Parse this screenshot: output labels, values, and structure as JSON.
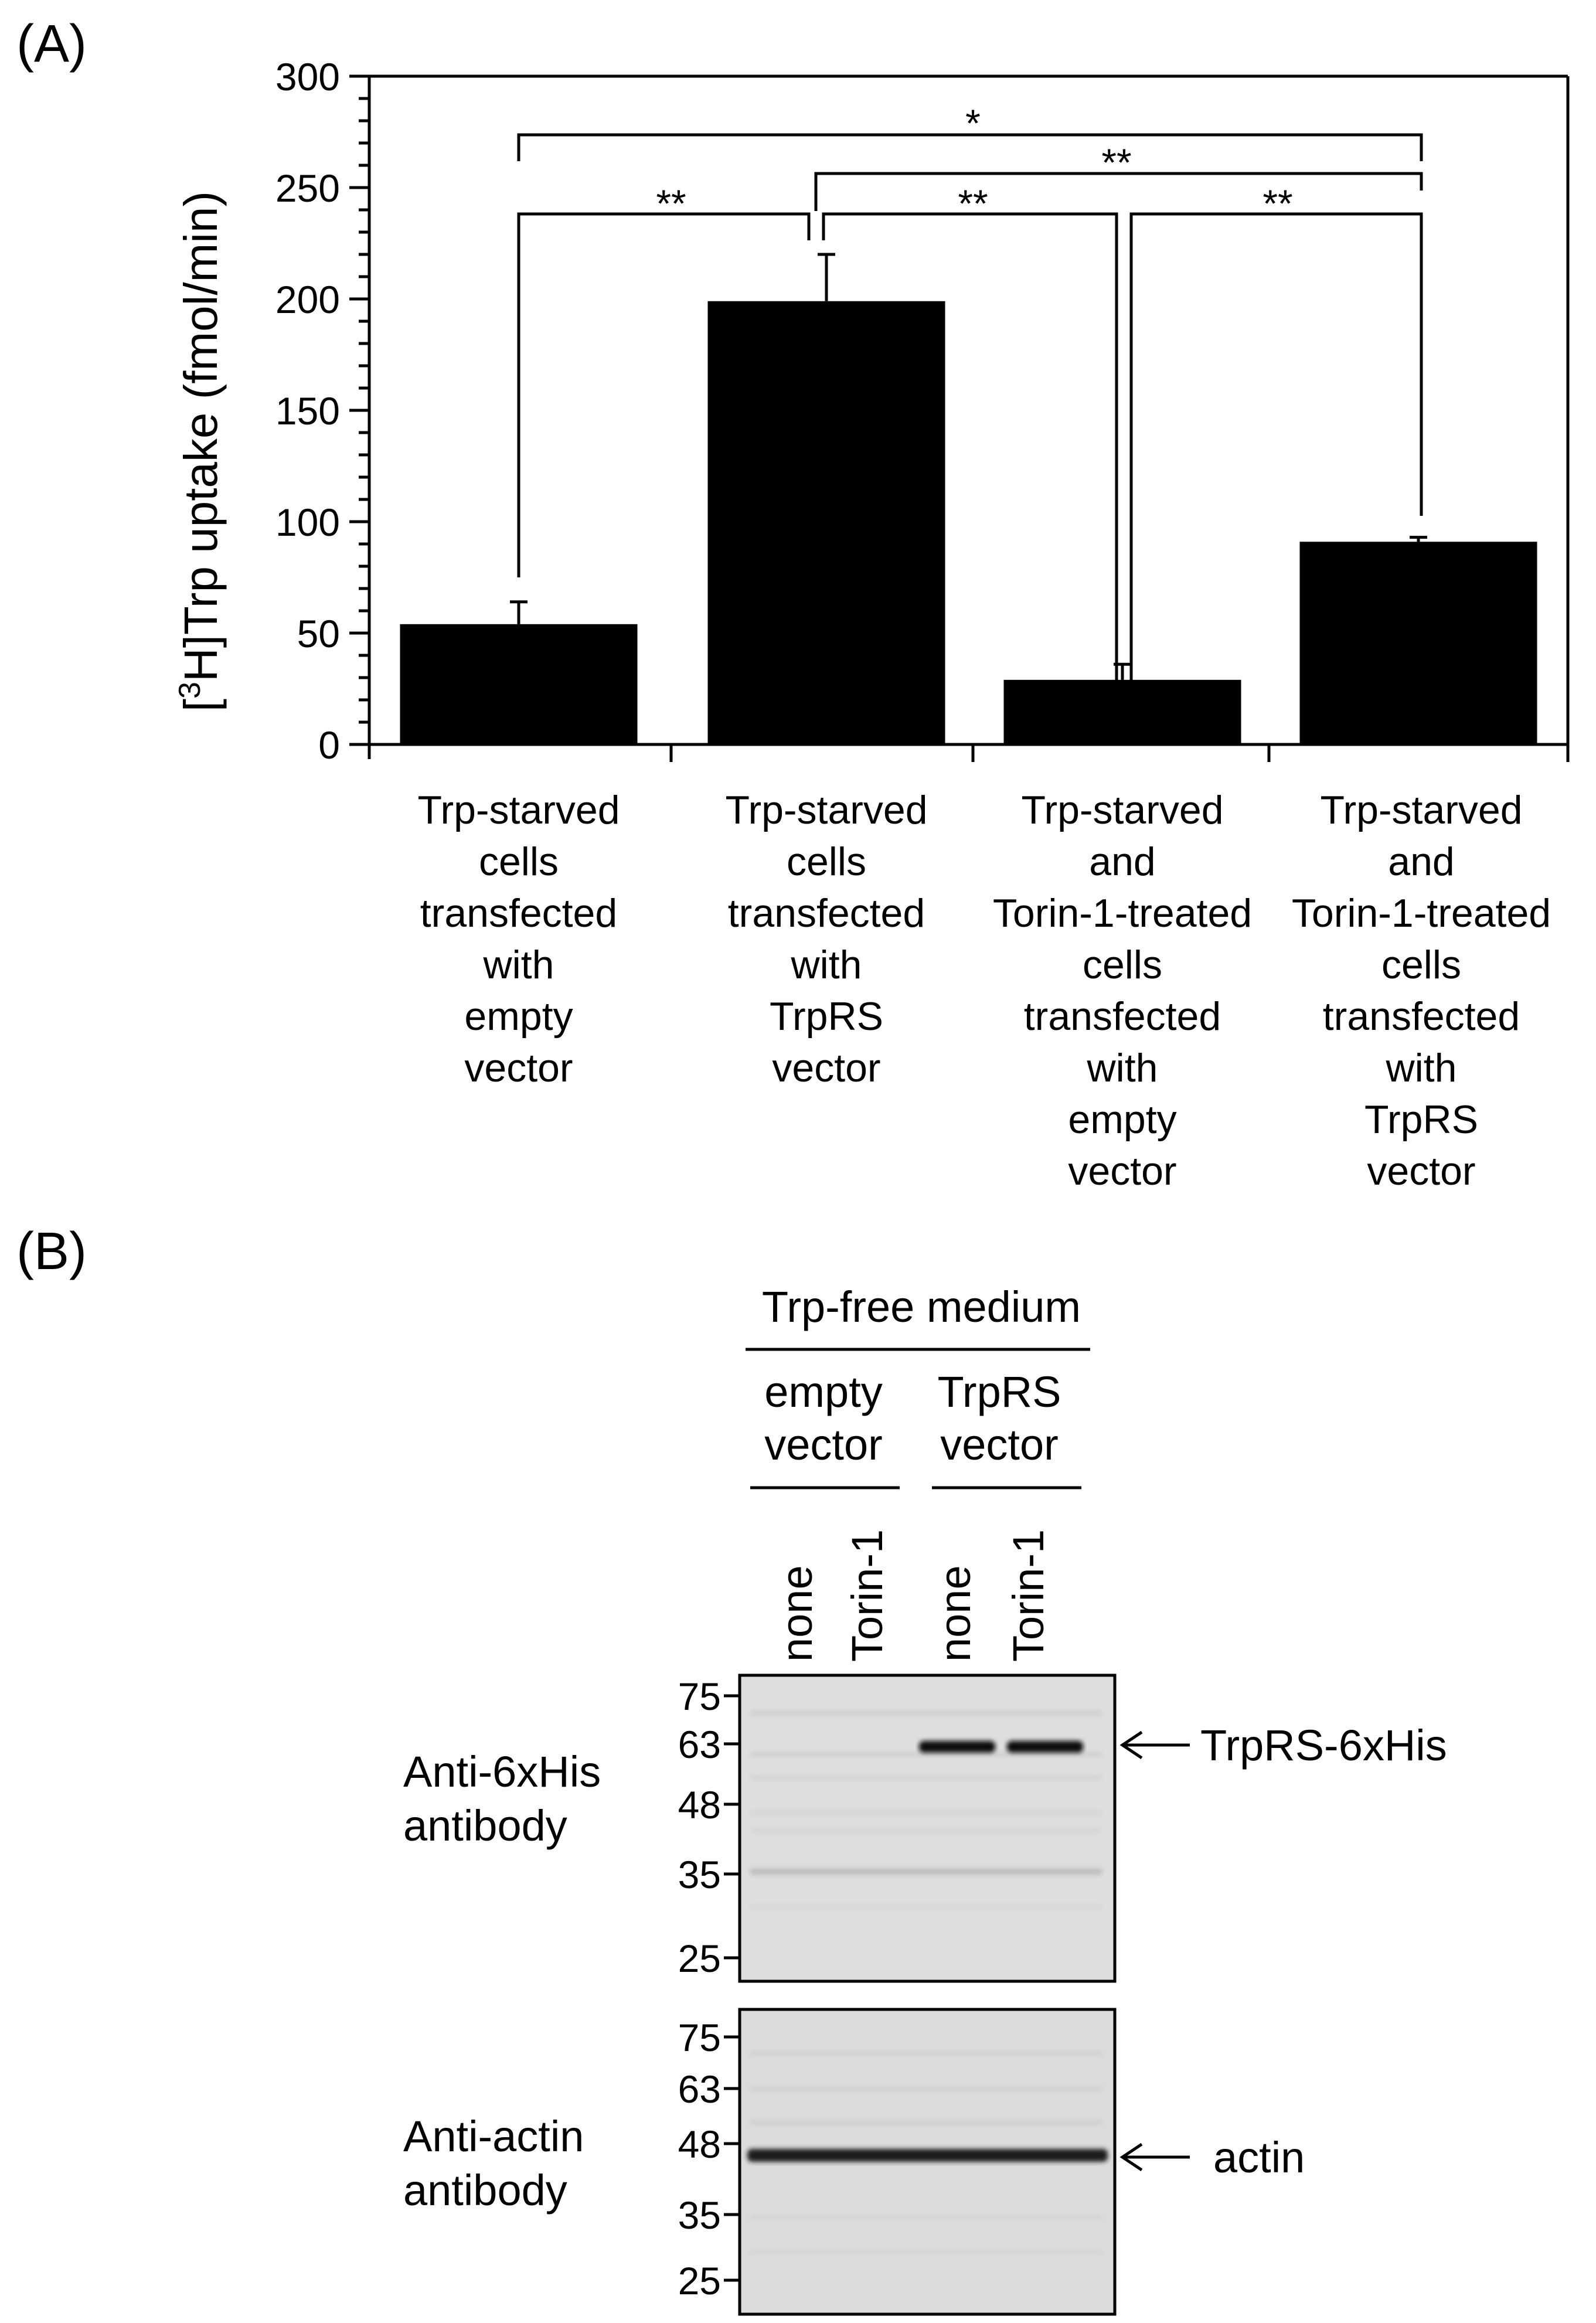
{
  "panel_a": {
    "label": "(A)",
    "ylabel_prefix": "[",
    "ylabel_sup": "3",
    "ylabel_rest": "H]Trp uptake (fmol/min)",
    "ticks": [
      "0",
      "50",
      "100",
      "150",
      "200",
      "250",
      "300"
    ],
    "groups": [
      [
        "Trp-starved",
        "cells",
        "transfected",
        "with",
        "empty",
        "vector"
      ],
      [
        "Trp-starved",
        "cells",
        "transfected",
        "with",
        "TrpRS",
        "vector"
      ],
      [
        "Trp-starved",
        "and",
        "Torin-1-treated",
        "cells",
        "transfected",
        "with",
        "empty",
        "vector"
      ],
      [
        "Trp-starved",
        "and",
        "Torin-1-treated",
        "cells",
        "transfected",
        "with",
        "TrpRS",
        "vector"
      ]
    ],
    "significance": [
      "**",
      "**",
      "**",
      "**",
      "*"
    ]
  },
  "chart_data": {
    "type": "bar",
    "categories": [
      "Trp-starved cells transfected with empty vector",
      "Trp-starved cells transfected with TrpRS vector",
      "Trp-starved and Torin-1-treated cells transfected with empty vector",
      "Trp-starved and Torin-1-treated cells transfected with TrpRS vector"
    ],
    "values": [
      54,
      199,
      29,
      91
    ],
    "errors": [
      10,
      21,
      7,
      2
    ],
    "ylabel": "[3H]Trp uptake (fmol/min)",
    "ylim": [
      0,
      300
    ],
    "yticks": [
      0,
      50,
      100,
      150,
      200,
      250,
      300
    ],
    "bar_color": "#000000",
    "grid": false,
    "comparisons": [
      {
        "pair": [
          1,
          2
        ],
        "label": "**"
      },
      {
        "pair": [
          2,
          3
        ],
        "label": "**"
      },
      {
        "pair": [
          3,
          4
        ],
        "label": "**"
      },
      {
        "pair": [
          2,
          4
        ],
        "label": "**"
      },
      {
        "pair": [
          1,
          4
        ],
        "label": "*"
      }
    ]
  },
  "panel_b": {
    "label": "(B)",
    "header": "Trp-free medium",
    "vec1": [
      "empty",
      "vector"
    ],
    "vec2": [
      "TrpRS",
      "vector"
    ],
    "lanes": [
      "none",
      "Torin-1",
      "none",
      "Torin-1"
    ],
    "blot1_label": [
      "Anti-6xHis",
      "antibody"
    ],
    "blot2_label": [
      "Anti-actin",
      "antibody"
    ],
    "markers": [
      "75",
      "63",
      "48",
      "35",
      "25"
    ],
    "band1_label": "TrpRS-6xHis",
    "band2_label": "actin"
  }
}
